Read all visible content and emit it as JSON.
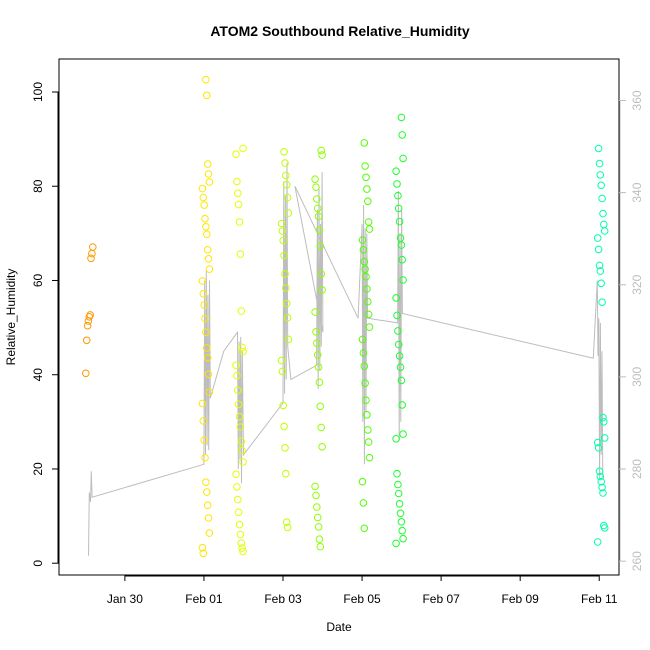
{
  "chart_data": {
    "type": "scatter",
    "title": "ATOM2 Southbound Relative_Humidity",
    "xlabel": "Date",
    "ylabel": "Relative_Humidity",
    "x_tick_labels": [
      "Jan 30",
      "Feb 01",
      "Feb 03",
      "Feb 05",
      "Feb 07",
      "Feb 09",
      "Feb 11"
    ],
    "x_tick_dates": [
      "2020-01-30",
      "2020-02-01",
      "2020-02-03",
      "2020-02-05",
      "2020-02-07",
      "2020-02-09",
      "2020-02-11"
    ],
    "xlim": [
      "2020-01-28T08:00",
      "2020-02-11T12:00"
    ],
    "y_ticks": [
      0,
      20,
      40,
      60,
      80,
      100
    ],
    "ylim": [
      -2.5,
      107
    ],
    "y2_ticks": [
      260,
      280,
      300,
      320,
      340,
      360
    ],
    "y2lim": [
      257,
      369
    ],
    "grid": false,
    "legend": "none",
    "clusters": [
      {
        "day": 29.1,
        "color": "#ff9900",
        "values": [
          40.3,
          47.3,
          50.4,
          51.4,
          52.3,
          52.7,
          64.7,
          65.7,
          67.1
        ]
      },
      {
        "day": 32.05,
        "color": "#ffe600",
        "values": [
          102.6,
          99.3,
          84.7,
          82.6,
          80.9,
          79.5,
          77.6,
          76.0,
          73.1,
          71.4,
          69.8,
          66.5,
          64.6,
          62.4,
          59.9,
          57.2,
          54.8,
          51.9,
          49.0,
          45.7,
          43.6,
          40.1,
          36.3,
          33.9,
          30.2,
          26.1,
          22.4,
          17.2,
          15.1,
          12.3,
          9.6,
          6.4,
          3.3,
          2.1
        ]
      },
      {
        "day": 32.9,
        "color": "#e2ff00",
        "values": [
          88.0,
          86.8,
          81.0,
          78.5,
          76.1,
          72.4,
          65.6,
          53.5,
          45.8,
          44.9,
          42.0,
          39.8,
          36.7,
          33.7,
          31.1,
          28.9,
          25.9,
          23.9,
          21.5,
          18.9,
          16.2,
          13.5,
          10.8,
          8.2,
          6.1,
          4.3,
          3.2,
          2.5
        ]
      },
      {
        "day": 34.05,
        "color": "#bfff00",
        "values": [
          87.3,
          84.9,
          82.3,
          80.3,
          77.6,
          74.3,
          72.1,
          70.5,
          68.5,
          65.3,
          61.4,
          58.4,
          55.1,
          52.1,
          47.5,
          43.0,
          40.7,
          33.5,
          29.0,
          24.5,
          19.0,
          8.7,
          7.6
        ]
      },
      {
        "day": 34.9,
        "color": "#8fff00",
        "values": [
          87.6,
          86.6,
          81.5,
          79.8,
          77.3,
          75.3,
          73.6,
          70.7,
          67.3,
          61.4,
          58.0,
          53.3,
          49.1,
          46.7,
          44.2,
          41.6,
          38.4,
          33.3,
          28.8,
          24.7,
          16.3,
          14.4,
          11.9,
          9.7,
          7.7,
          5.1,
          3.5
        ]
      },
      {
        "day": 36.1,
        "color": "#4fff00",
        "values": [
          89.2,
          84.3,
          81.9,
          79.4,
          76.8,
          72.4,
          70.9,
          68.6,
          66.5,
          64.0,
          62.4,
          60.8,
          58.2,
          55.5,
          52.8,
          50.1,
          47.5,
          44.6,
          41.8,
          38.2,
          34.6,
          31.5,
          28.3,
          25.7,
          22.4,
          17.3,
          12.8,
          7.4
        ]
      },
      {
        "day": 36.95,
        "color": "#1aff2e",
        "values": [
          94.6,
          90.9,
          85.9,
          83.2,
          80.5,
          78.0,
          75.3,
          72.5,
          69.0,
          67.5,
          64.4,
          60.1,
          56.3,
          52.6,
          49.3,
          46.4,
          44.0,
          41.6,
          38.8,
          33.6,
          27.4,
          26.4,
          19.0,
          16.7,
          14.8,
          12.6,
          10.6,
          8.8,
          6.9,
          5.2,
          4.2
        ]
      },
      {
        "day": 42.05,
        "color": "#00ffaa",
        "values": [
          88.0,
          84.8,
          82.4,
          80.2,
          77.4,
          74.2,
          71.9,
          70.5,
          69.0,
          66.6,
          63.2,
          62.0,
          59.4,
          55.4,
          30.9,
          30.0,
          26.6,
          25.6,
          24.5,
          19.5,
          18.4,
          17.3,
          16.1,
          14.9,
          8.0,
          7.5,
          4.5
        ]
      }
    ],
    "line_series_color": "#bdbdbd",
    "line_points": [
      [
        29.08,
        1.6
      ],
      [
        29.1,
        15
      ],
      [
        29.13,
        13
      ],
      [
        29.15,
        19.5
      ],
      [
        29.17,
        14
      ],
      [
        32.0,
        21
      ],
      [
        32.02,
        60
      ],
      [
        32.04,
        23
      ],
      [
        32.06,
        62
      ],
      [
        32.08,
        25
      ],
      [
        32.1,
        57
      ],
      [
        32.12,
        24
      ],
      [
        32.14,
        60
      ],
      [
        32.16,
        35
      ],
      [
        32.5,
        45
      ],
      [
        32.85,
        49
      ],
      [
        32.87,
        20
      ],
      [
        32.89,
        47
      ],
      [
        32.91,
        22
      ],
      [
        32.93,
        48
      ],
      [
        32.95,
        17
      ],
      [
        32.97,
        45
      ],
      [
        33.0,
        23
      ],
      [
        34.0,
        34
      ],
      [
        34.02,
        81
      ],
      [
        34.04,
        36
      ],
      [
        34.06,
        78
      ],
      [
        34.08,
        39
      ],
      [
        34.1,
        85
      ],
      [
        34.12,
        46
      ],
      [
        34.2,
        39
      ],
      [
        34.85,
        42
      ],
      [
        34.87,
        75
      ],
      [
        34.89,
        37
      ],
      [
        34.91,
        80
      ],
      [
        34.93,
        41
      ],
      [
        34.95,
        72
      ],
      [
        34.97,
        46
      ],
      [
        34.99,
        83
      ],
      [
        35.01,
        49
      ],
      [
        34.3,
        80
      ],
      [
        35.9,
        52
      ],
      [
        36.0,
        72
      ],
      [
        36.02,
        30
      ],
      [
        36.04,
        76
      ],
      [
        36.06,
        21
      ],
      [
        36.08,
        71
      ],
      [
        36.1,
        32
      ],
      [
        36.12,
        70
      ],
      [
        36.14,
        52
      ],
      [
        36.9,
        51
      ],
      [
        36.92,
        79
      ],
      [
        36.94,
        26
      ],
      [
        36.96,
        70
      ],
      [
        36.98,
        30
      ],
      [
        37.0,
        75
      ],
      [
        37.02,
        53
      ],
      [
        41.85,
        43.5
      ],
      [
        41.95,
        60
      ],
      [
        41.97,
        44
      ],
      [
        41.99,
        52
      ],
      [
        42.01,
        18
      ],
      [
        42.03,
        51
      ],
      [
        42.05,
        23
      ],
      [
        42.07,
        45
      ],
      [
        42.09,
        18
      ]
    ]
  }
}
